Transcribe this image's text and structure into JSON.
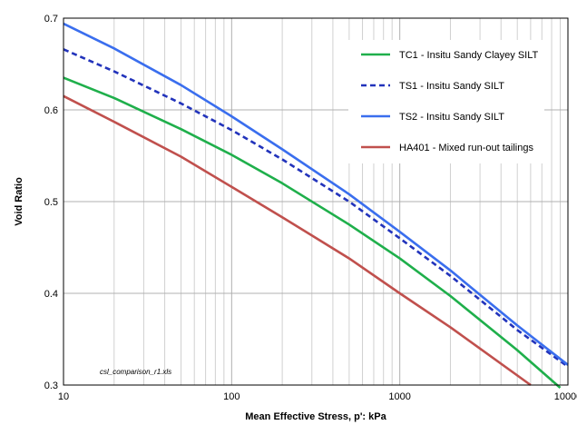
{
  "chart_data": {
    "type": "line",
    "title": "",
    "xlabel": "Mean Effective Stress, p': kPa",
    "ylabel": "Void Ratio",
    "xscale": "log",
    "xlim": [
      10,
      10000
    ],
    "ylim": [
      0.3,
      0.7
    ],
    "x_ticks": [
      "10",
      "100",
      "1000",
      "10000"
    ],
    "y_ticks": [
      "0.3",
      "0.4",
      "0.5",
      "0.6",
      "0.7"
    ],
    "grid": true,
    "legend_position": "top-right",
    "annotation": "csl_comparison_r1.xls",
    "series": [
      {
        "name": "TC1 - Insitu Sandy Clayey SILT",
        "color": "#1FAF4B",
        "dash": "solid",
        "x": [
          10,
          20,
          50,
          100,
          200,
          500,
          1000,
          2000,
          5000,
          9000
        ],
        "y": [
          0.635,
          0.613,
          0.579,
          0.551,
          0.52,
          0.475,
          0.438,
          0.397,
          0.338,
          0.297
        ]
      },
      {
        "name": "TS1 - Insitu Sandy SILT",
        "color": "#2233BB",
        "dash": "dashed",
        "x": [
          10,
          20,
          50,
          100,
          200,
          500,
          1000,
          2000,
          5000,
          10000
        ],
        "y": [
          0.666,
          0.642,
          0.607,
          0.578,
          0.546,
          0.5,
          0.46,
          0.419,
          0.36,
          0.32
        ]
      },
      {
        "name": "TS2 - Insitu Sandy SILT",
        "color": "#3A6EEE",
        "dash": "solid",
        "x": [
          10,
          20,
          50,
          100,
          200,
          500,
          1000,
          2000,
          5000,
          10000
        ],
        "y": [
          0.694,
          0.667,
          0.627,
          0.593,
          0.557,
          0.508,
          0.467,
          0.425,
          0.365,
          0.322
        ]
      },
      {
        "name": "HA401 - Mixed run-out tailings",
        "color": "#C0504D",
        "dash": "solid",
        "x": [
          10,
          20,
          50,
          100,
          200,
          500,
          1000,
          2000,
          6000
        ],
        "y": [
          0.615,
          0.587,
          0.549,
          0.516,
          0.483,
          0.438,
          0.4,
          0.363,
          0.3
        ]
      }
    ]
  }
}
